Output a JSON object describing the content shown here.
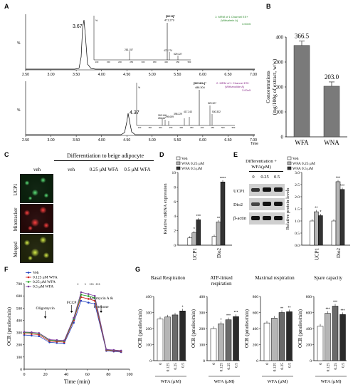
{
  "panel_labels": [
    "A",
    "B",
    "C",
    "D",
    "E",
    "F",
    "G"
  ],
  "panelA": {
    "top": {
      "peak_label": "3.67",
      "xticks": [
        "2.50",
        "3.00",
        "3.50",
        "4.00",
        "4.50",
        "5.00",
        "5.50",
        "6.00",
        "6.50",
        "7.00"
      ],
      "legend": [
        "1: MRM of 1 Channel ES+",
        "(Withaferin A)",
        "3.00e5"
      ],
      "ion": "[M+H]⁺",
      "ion_mz": "471.279",
      "ms_peaks": [
        "281.157",
        "472.274",
        "529.327"
      ],
      "ms_xticks": [
        "100",
        "150",
        "200",
        "250",
        "300",
        "350",
        "400",
        "450",
        "500"
      ],
      "pct": "%"
    },
    "bottom": {
      "peak_label": "4.37",
      "xticks": [
        "2.50",
        "3.00",
        "3.50",
        "4.00",
        "4.50",
        "5.00",
        "5.50",
        "6.00",
        "6.50",
        "7.00"
      ],
      "xlabel": "Time",
      "legend": [
        "2: MRM of 1 Channel ES+",
        "(Withanolide A)",
        "3.00e5"
      ],
      "ion": "[M+NH₄]⁺",
      "ion_mz": "488.304",
      "ms_peaks": [
        "263.146",
        "281.16",
        "299.059",
        "398.229",
        "417.243",
        "529.327",
        "530.332"
      ],
      "ms_xticks": [
        "100",
        "150",
        "200",
        "250",
        "300",
        "350",
        "400",
        "450",
        "500",
        "550"
      ],
      "pct": "%"
    }
  },
  "panelB": {
    "ylabel_1": "Concentrations",
    "ylabel_2": "(mg/100g of extract, w/w)",
    "categories": [
      "WFA",
      "WNA"
    ],
    "values": [
      366.5,
      203.0
    ],
    "value_labels": [
      "366.5",
      "203.0"
    ],
    "yticks": [
      "0",
      "100",
      "200",
      "300",
      "400"
    ],
    "ylim": [
      0,
      400
    ]
  },
  "panelC": {
    "header": "Differentiation to beige adipocyte",
    "columns": [
      "veh",
      "veh",
      "0.25 μM WFA",
      "0.5 μM WFA"
    ],
    "rows": [
      "UCP1",
      "Mitotracker",
      "Merged"
    ]
  },
  "panelD": {
    "legend": [
      "Veh",
      "WFA 0.25 μM",
      "WFA 0.5 μM"
    ],
    "ylabel": "Relative mRNA expression",
    "yticks": [
      "0",
      "2",
      "4",
      "6",
      "8",
      "10"
    ],
    "categories": [
      "UCP1",
      "Dio2"
    ],
    "values": [
      [
        1,
        1.7,
        3.5
      ],
      [
        1.2,
        3.2,
        8.7
      ]
    ],
    "sig": [
      [
        "",
        "*",
        "***"
      ],
      [
        "",
        "**",
        "****"
      ]
    ]
  },
  "panelE": {
    "header_1": "Differentiation +",
    "header_2": "WFA(μM)",
    "doses": [
      "0",
      "0.25",
      "0.5"
    ],
    "bands": [
      "UCP1",
      "Dio2",
      "β-actin"
    ],
    "legend": [
      "Veh",
      "WFA 0.25 μM",
      "WFA 0.5 μM"
    ],
    "ylabel": "Relative protein levels",
    "yticks": [
      "0.0",
      "0.5",
      "1.0",
      "1.5",
      "2.0",
      "2.5",
      "3.0"
    ],
    "categories": [
      "UCP1",
      "Dio2"
    ],
    "values": [
      [
        1.0,
        1.38,
        1.22
      ],
      [
        1.0,
        2.62,
        2.3
      ]
    ],
    "sig": [
      [
        "",
        "**",
        "*"
      ],
      [
        "",
        "***",
        "***"
      ]
    ]
  },
  "panelF": {
    "legend": [
      "Veh",
      "0.125 μM WFA",
      "0.25 μM WFA",
      "0.5 μM WFA"
    ],
    "colors": [
      "#1f3fbf",
      "#d02020",
      "#20a020",
      "#7a3a9a"
    ],
    "annotations": [
      "Oligomycin",
      "FCCP",
      "Antimycin A &",
      "Rotenone"
    ],
    "ylabel": "OCR (pmoles/min)",
    "xlabel": "Time (min)",
    "yticks": [
      "0",
      "100",
      "200",
      "300",
      "400",
      "500",
      "600",
      "700"
    ],
    "xticks": [
      "0",
      "20",
      "40",
      "60",
      "80",
      "100"
    ],
    "x": [
      0,
      7,
      14,
      24,
      31,
      38,
      47,
      54,
      61,
      67,
      78,
      85,
      92
    ],
    "series": [
      [
        280,
        275,
        270,
        220,
        215,
        212,
        380,
        560,
        545,
        535,
        150,
        145,
        140
      ],
      [
        290,
        288,
        282,
        230,
        225,
        222,
        400,
        590,
        575,
        560,
        155,
        150,
        145
      ],
      [
        300,
        298,
        292,
        238,
        233,
        230,
        410,
        610,
        598,
        585,
        160,
        155,
        150
      ],
      [
        305,
        302,
        296,
        242,
        238,
        235,
        420,
        630,
        615,
        600,
        162,
        157,
        152
      ]
    ],
    "sig": [
      "*",
      "*",
      "***",
      "***"
    ]
  },
  "panelG": {
    "ylabel": "OCR (pmoles/min)",
    "xlabel": "WFA (μM)",
    "doses": [
      "0",
      "0.125",
      "0.25",
      "0.5"
    ],
    "subplots": [
      {
        "title": "Basal Respiration",
        "yticks": [
          "0",
          "100",
          "200",
          "300",
          "400"
        ],
        "ymax": 400,
        "values": [
          260,
          272,
          285,
          310
        ],
        "sig": [
          "",
          "",
          "",
          "*"
        ]
      },
      {
        "title": "ATP-linked respiration",
        "yticks": [
          "0",
          "100",
          "200",
          "300",
          "400"
        ],
        "ymax": 400,
        "values": [
          200,
          230,
          255,
          275
        ],
        "sig": [
          "",
          "*",
          "***",
          "***"
        ]
      },
      {
        "title": "Maximal respiration",
        "yticks": [
          "0",
          "200",
          "400",
          "600",
          "800"
        ],
        "ymax": 800,
        "values": [
          470,
          530,
          600,
          610
        ],
        "sig": [
          "",
          "",
          "**",
          "**"
        ]
      },
      {
        "title": "Spare capacity",
        "yticks": [
          "0",
          "200",
          "400",
          "600",
          "800"
        ],
        "ymax": 800,
        "values": [
          430,
          590,
          680,
          575
        ],
        "sig": [
          "",
          "***",
          "***",
          "***"
        ]
      }
    ]
  }
}
